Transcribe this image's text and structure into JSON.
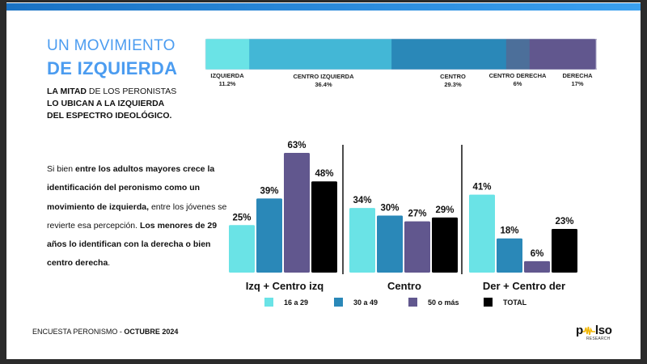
{
  "header": {
    "title_line1": "UN MOVIMIENTO",
    "title_line2": "DE IZQUIERDA",
    "subtitle_bold1": "LA MITAD",
    "subtitle_rest1": " DE LOS PERONISTAS",
    "subtitle_line2": "LO UBICAN A LA IZQUIERDA",
    "subtitle_line3": "DEL ESPECTRO IDEOLÓGICO."
  },
  "body": {
    "p1_plain": "Si bien ",
    "p1_bold": "entre los adultos mayores crece la identificación del peronismo como un movimiento de izquierda,",
    "p2_plain": " entre los jóvenes se revierte esa percepción. ",
    "p2_bold": "Los menores de 29 años lo identifican con la derecha o bien centro derecha",
    "p2_end": "."
  },
  "footer": {
    "label": "ENCUESTA PERONISMO - ",
    "date": "OCTUBRE 2024"
  },
  "logo": {
    "name": "pulso",
    "sub": "RESEARCH",
    "accent": "#f2b705"
  },
  "colors": {
    "topbar_start": "#1a72c4",
    "topbar_end": "#3aa0f0",
    "title": "#4b9cf0",
    "age_16_29": "#6ae3e6",
    "age_30_49": "#2a88b8",
    "age_50_plus": "#61578e",
    "total": "#000000"
  },
  "chart_data": [
    {
      "type": "bar",
      "orientation": "horizontal-stacked",
      "title": "Autoubicación ideológica del peronismo",
      "categories": [
        "IZQUIERDA",
        "CENTRO IZQUIERDA",
        "CENTRO",
        "CENTRO DERECHA",
        "DERECHA"
      ],
      "values": [
        11.2,
        36.4,
        29.3,
        6,
        17
      ],
      "value_labels": [
        "11.2%",
        "36.4%",
        "29.3%",
        "6%",
        "17%"
      ],
      "colors": [
        "#6ae3e6",
        "#43b7d6",
        "#2a88b8",
        "#4c6f9a",
        "#61578e"
      ],
      "unit": "%"
    },
    {
      "type": "bar",
      "orientation": "vertical-grouped",
      "categories": [
        "Izq + Centro izq",
        "Centro",
        "Der + Centro der"
      ],
      "series": [
        {
          "name": "16 a 29",
          "values": [
            25,
            34,
            41
          ],
          "color": "#6ae3e6"
        },
        {
          "name": "30 a 49",
          "values": [
            39,
            30,
            18
          ],
          "color": "#2a88b8"
        },
        {
          "name": "50 o más",
          "values": [
            63,
            27,
            6
          ],
          "color": "#61578e"
        },
        {
          "name": "TOTAL",
          "values": [
            48,
            29,
            23
          ],
          "color": "#000000"
        }
      ],
      "ylim": [
        0,
        65
      ],
      "unit": "%",
      "grid": false,
      "legend": "bottom",
      "xlabel": "",
      "ylabel": ""
    }
  ]
}
